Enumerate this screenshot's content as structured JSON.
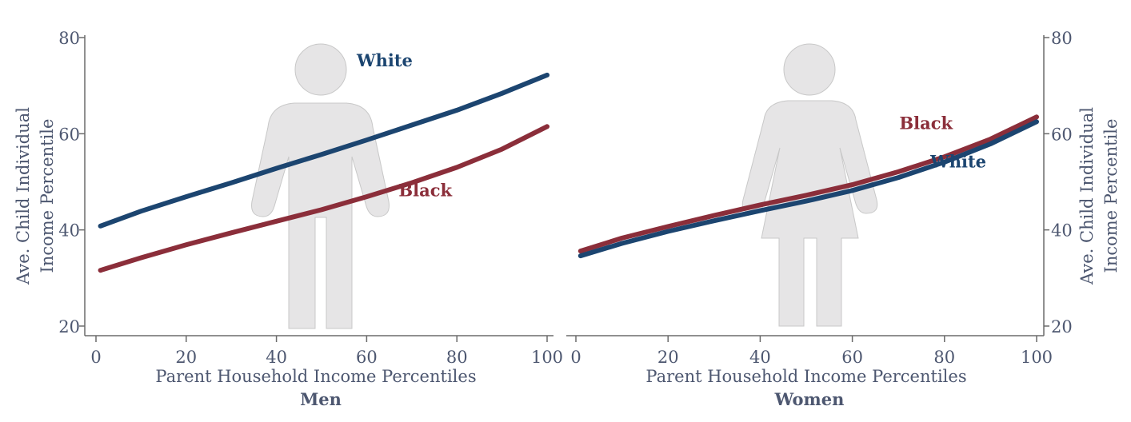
{
  "colors": {
    "white_series": "#1c4570",
    "black_series": "#8b2e3a",
    "text": "#4d5770"
  },
  "chart_data": [
    {
      "type": "line",
      "panel_title": "Men",
      "xlabel": "Parent Household Income Percentiles",
      "ylabel": [
        "Ave. Child Individual",
        "Income Percentile"
      ],
      "xlim": [
        0,
        100
      ],
      "ylim": [
        18,
        81
      ],
      "xticks": [
        0,
        20,
        40,
        60,
        80,
        100
      ],
      "yticks": [
        20,
        40,
        60,
        80
      ],
      "y_axis_side": "left",
      "icon": "man-icon",
      "series": [
        {
          "name": "White",
          "color": "#1c4570",
          "label_at": [
            64,
            74
          ],
          "x": [
            1,
            10,
            20,
            30,
            40,
            50,
            60,
            70,
            80,
            90,
            100
          ],
          "y": [
            40.8,
            43.9,
            46.9,
            49.8,
            52.8,
            55.7,
            58.7,
            61.8,
            64.9,
            68.4,
            72.2
          ]
        },
        {
          "name": "Black",
          "color": "#8b2e3a",
          "label_at": [
            73,
            47
          ],
          "x": [
            1,
            10,
            20,
            30,
            40,
            50,
            60,
            70,
            80,
            90,
            100
          ],
          "y": [
            31.6,
            34.2,
            36.9,
            39.4,
            41.8,
            44.2,
            46.9,
            49.8,
            53.0,
            56.8,
            61.5
          ]
        }
      ]
    },
    {
      "type": "line",
      "panel_title": "Women",
      "xlabel": "Parent Household Income Percentiles",
      "ylabel": [
        "Ave. Child Individual",
        "Income Percentile"
      ],
      "xlim": [
        0,
        100
      ],
      "ylim": [
        18,
        81
      ],
      "xticks": [
        0,
        20,
        40,
        60,
        80,
        100
      ],
      "yticks": [
        20,
        40,
        60,
        80
      ],
      "y_axis_side": "right",
      "icon": "woman-icon",
      "series": [
        {
          "name": "Black",
          "color": "#8b2e3a",
          "label_at": [
            76,
            61
          ],
          "x": [
            1,
            10,
            20,
            30,
            40,
            50,
            60,
            70,
            80,
            90,
            100
          ],
          "y": [
            35.6,
            38.3,
            40.7,
            43.0,
            45.2,
            47.2,
            49.4,
            52.1,
            55.2,
            58.9,
            63.5
          ]
        },
        {
          "name": "White",
          "color": "#1c4570",
          "label_at": [
            83,
            53
          ],
          "x": [
            1,
            10,
            20,
            30,
            40,
            50,
            60,
            70,
            80,
            90,
            100
          ],
          "y": [
            34.6,
            37.2,
            39.7,
            41.9,
            44.0,
            46.0,
            48.2,
            50.9,
            54.1,
            57.9,
            62.5
          ]
        }
      ]
    }
  ]
}
